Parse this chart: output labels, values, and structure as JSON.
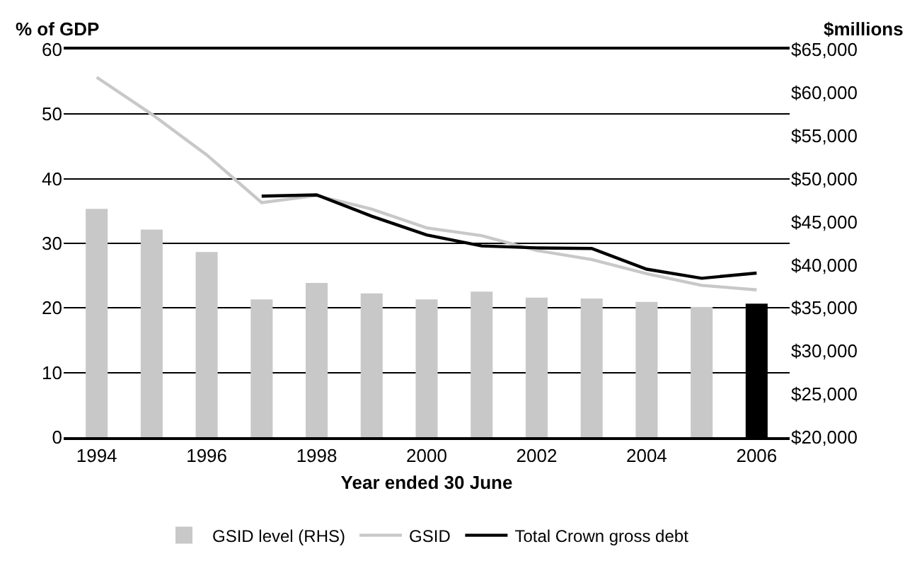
{
  "chart_data": {
    "type": "bar",
    "x": [
      1994,
      1995,
      1996,
      1997,
      1998,
      1999,
      2000,
      2001,
      2002,
      2003,
      2004,
      2005,
      2006
    ],
    "xlabel": "Year ended 30 June",
    "ylabel": "% of GDP",
    "y2label": "$millions",
    "xlim": [
      1993.4,
      2006.6
    ],
    "xticks": [
      1994,
      1996,
      1998,
      2000,
      2002,
      2004,
      2006
    ],
    "ylim": [
      0,
      60
    ],
    "yticks": [
      0,
      10,
      20,
      30,
      40,
      50,
      60
    ],
    "y2lim": [
      20000,
      65000
    ],
    "y2ticks": [
      {
        "value": 20000,
        "label": "$20,000"
      },
      {
        "value": 25000,
        "label": "$25,000"
      },
      {
        "value": 30000,
        "label": "$30,000"
      },
      {
        "value": 35000,
        "label": "$35,000"
      },
      {
        "value": 40000,
        "label": "$40,000"
      },
      {
        "value": 45000,
        "label": "$45,000"
      },
      {
        "value": 50000,
        "label": "$50,000"
      },
      {
        "value": 55000,
        "label": "$55,000"
      },
      {
        "value": 60000,
        "label": "$60,000"
      },
      {
        "value": 65000,
        "label": "$65,000"
      }
    ],
    "grid": "y",
    "legend": "bottom",
    "series": [
      {
        "name": "GSID level (RHS)",
        "axis": "y2",
        "color": "#c8c8c8",
        "colors": [
          "#c8c8c8",
          "#c8c8c8",
          "#c8c8c8",
          "#c8c8c8",
          "#c8c8c8",
          "#c8c8c8",
          "#c8c8c8",
          "#c8c8c8",
          "#c8c8c8",
          "#c8c8c8",
          "#c8c8c8",
          "#c8c8c8",
          "#000000"
        ],
        "values": [
          46500,
          44100,
          41500,
          36000,
          37900,
          36700,
          36000,
          36900,
          36200,
          36100,
          35700,
          35100,
          35500
        ]
      },
      {
        "name": "GSID",
        "type": "line",
        "color": "#c8c8c8",
        "values": [
          55.7,
          50.0,
          43.7,
          36.3,
          37.4,
          35.3,
          32.4,
          31.2,
          28.9,
          27.5,
          25.3,
          23.5,
          22.8
        ]
      },
      {
        "name": "Total Crown gross debt",
        "type": "line",
        "color": "#000000",
        "values": [
          null,
          null,
          null,
          37.3,
          37.5,
          34.2,
          31.3,
          29.6,
          29.3,
          29.2,
          26.0,
          24.6,
          25.4
        ]
      }
    ]
  }
}
